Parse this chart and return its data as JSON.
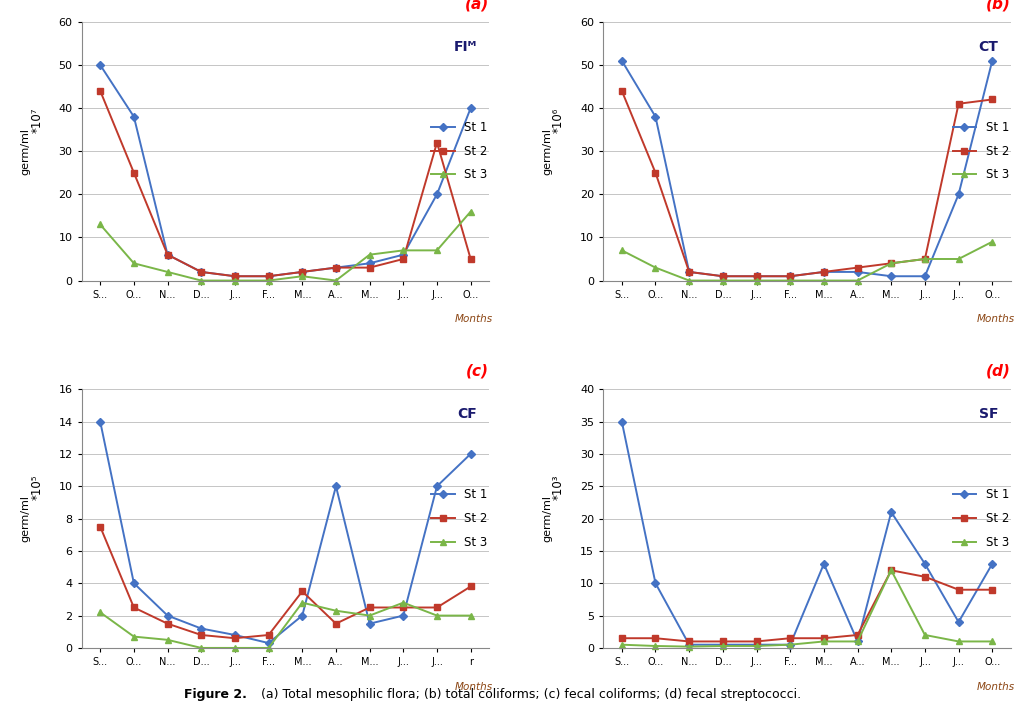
{
  "months_a": [
    "S...",
    "O...",
    "N...",
    "D...",
    "J...",
    "F...",
    "M...",
    "A...",
    "M...",
    "J...",
    "J...",
    "O..."
  ],
  "months_b": [
    "S...",
    "O...",
    "N...",
    "D...",
    "J...",
    "F...",
    "M...",
    "A...",
    "M...",
    "J...",
    "J...",
    "O..."
  ],
  "months_c": [
    "S...",
    "O...",
    "N...",
    "D...",
    "J...",
    "F...",
    "M...",
    "A...",
    "M...",
    "J...",
    "J...",
    "r"
  ],
  "months_d": [
    "S...",
    "O...",
    "N...",
    "D...",
    "J...",
    "F...",
    "M...",
    "A...",
    "M...",
    "J...",
    "J...",
    "O..."
  ],
  "panel_a": {
    "title": "FIᴹ",
    "label": "(a)",
    "scale_label": "*10⁷",
    "ylim": [
      0,
      60
    ],
    "yticks": [
      0,
      10,
      20,
      30,
      40,
      50,
      60
    ],
    "st1": [
      50,
      38,
      6,
      2,
      1,
      1,
      2,
      3,
      4,
      6,
      20,
      40
    ],
    "st2": [
      44,
      25,
      6,
      2,
      1,
      1,
      2,
      3,
      3,
      5,
      32,
      5
    ],
    "st3": [
      13,
      4,
      2,
      0,
      0,
      0,
      1,
      0,
      6,
      7,
      7,
      16
    ]
  },
  "panel_b": {
    "title": "CT",
    "label": "(b)",
    "scale_label": "*10⁶",
    "ylim": [
      0,
      60
    ],
    "yticks": [
      0,
      10,
      20,
      30,
      40,
      50,
      60
    ],
    "st1": [
      51,
      38,
      2,
      1,
      1,
      1,
      2,
      2,
      1,
      1,
      20,
      51
    ],
    "st2": [
      44,
      25,
      2,
      1,
      1,
      1,
      2,
      3,
      4,
      5,
      41,
      42
    ],
    "st3": [
      7,
      3,
      0,
      0,
      0,
      0,
      0,
      0,
      4,
      5,
      5,
      9
    ]
  },
  "panel_c": {
    "title": "CF",
    "label": "(c)",
    "scale_label": "*10⁵",
    "ylim": [
      0,
      16
    ],
    "yticks": [
      0,
      2,
      4,
      6,
      8,
      10,
      12,
      14,
      16
    ],
    "st1": [
      14,
      4,
      2,
      1.2,
      0.8,
      0.3,
      2,
      10,
      1.5,
      2,
      10,
      12
    ],
    "st2": [
      7.5,
      2.5,
      1.5,
      0.8,
      0.6,
      0.8,
      3.5,
      1.5,
      2.5,
      2.5,
      2.5,
      3.8
    ],
    "st3": [
      2.2,
      0.7,
      0.5,
      0,
      0,
      0,
      2.8,
      2.3,
      2,
      2.8,
      2,
      2
    ]
  },
  "panel_d": {
    "title": "SF",
    "label": "(d)",
    "scale_label": "*10³",
    "ylim": [
      0,
      40
    ],
    "yticks": [
      0,
      5,
      10,
      15,
      20,
      25,
      30,
      35,
      40
    ],
    "st1": [
      35,
      10,
      0.5,
      0.5,
      0.5,
      0.5,
      13,
      1,
      21,
      13,
      4,
      13
    ],
    "st2": [
      1.5,
      1.5,
      1,
      1,
      1,
      1.5,
      1.5,
      2,
      12,
      11,
      9,
      9
    ],
    "st3": [
      0.5,
      0.3,
      0.2,
      0.3,
      0.3,
      0.5,
      1,
      1,
      12,
      2,
      1,
      1
    ]
  },
  "color_st1": "#4472C4",
  "color_st2": "#C0392B",
  "color_st3": "#7AB648",
  "ylabel": "germ/ml",
  "xlabel": "Months",
  "fig_caption_bold": "Figure 2.",
  "fig_caption_rest": " (a) Total mesophilic flora; (b) total coliforms; (c) fecal coliforms; (d) fecal streptococci."
}
